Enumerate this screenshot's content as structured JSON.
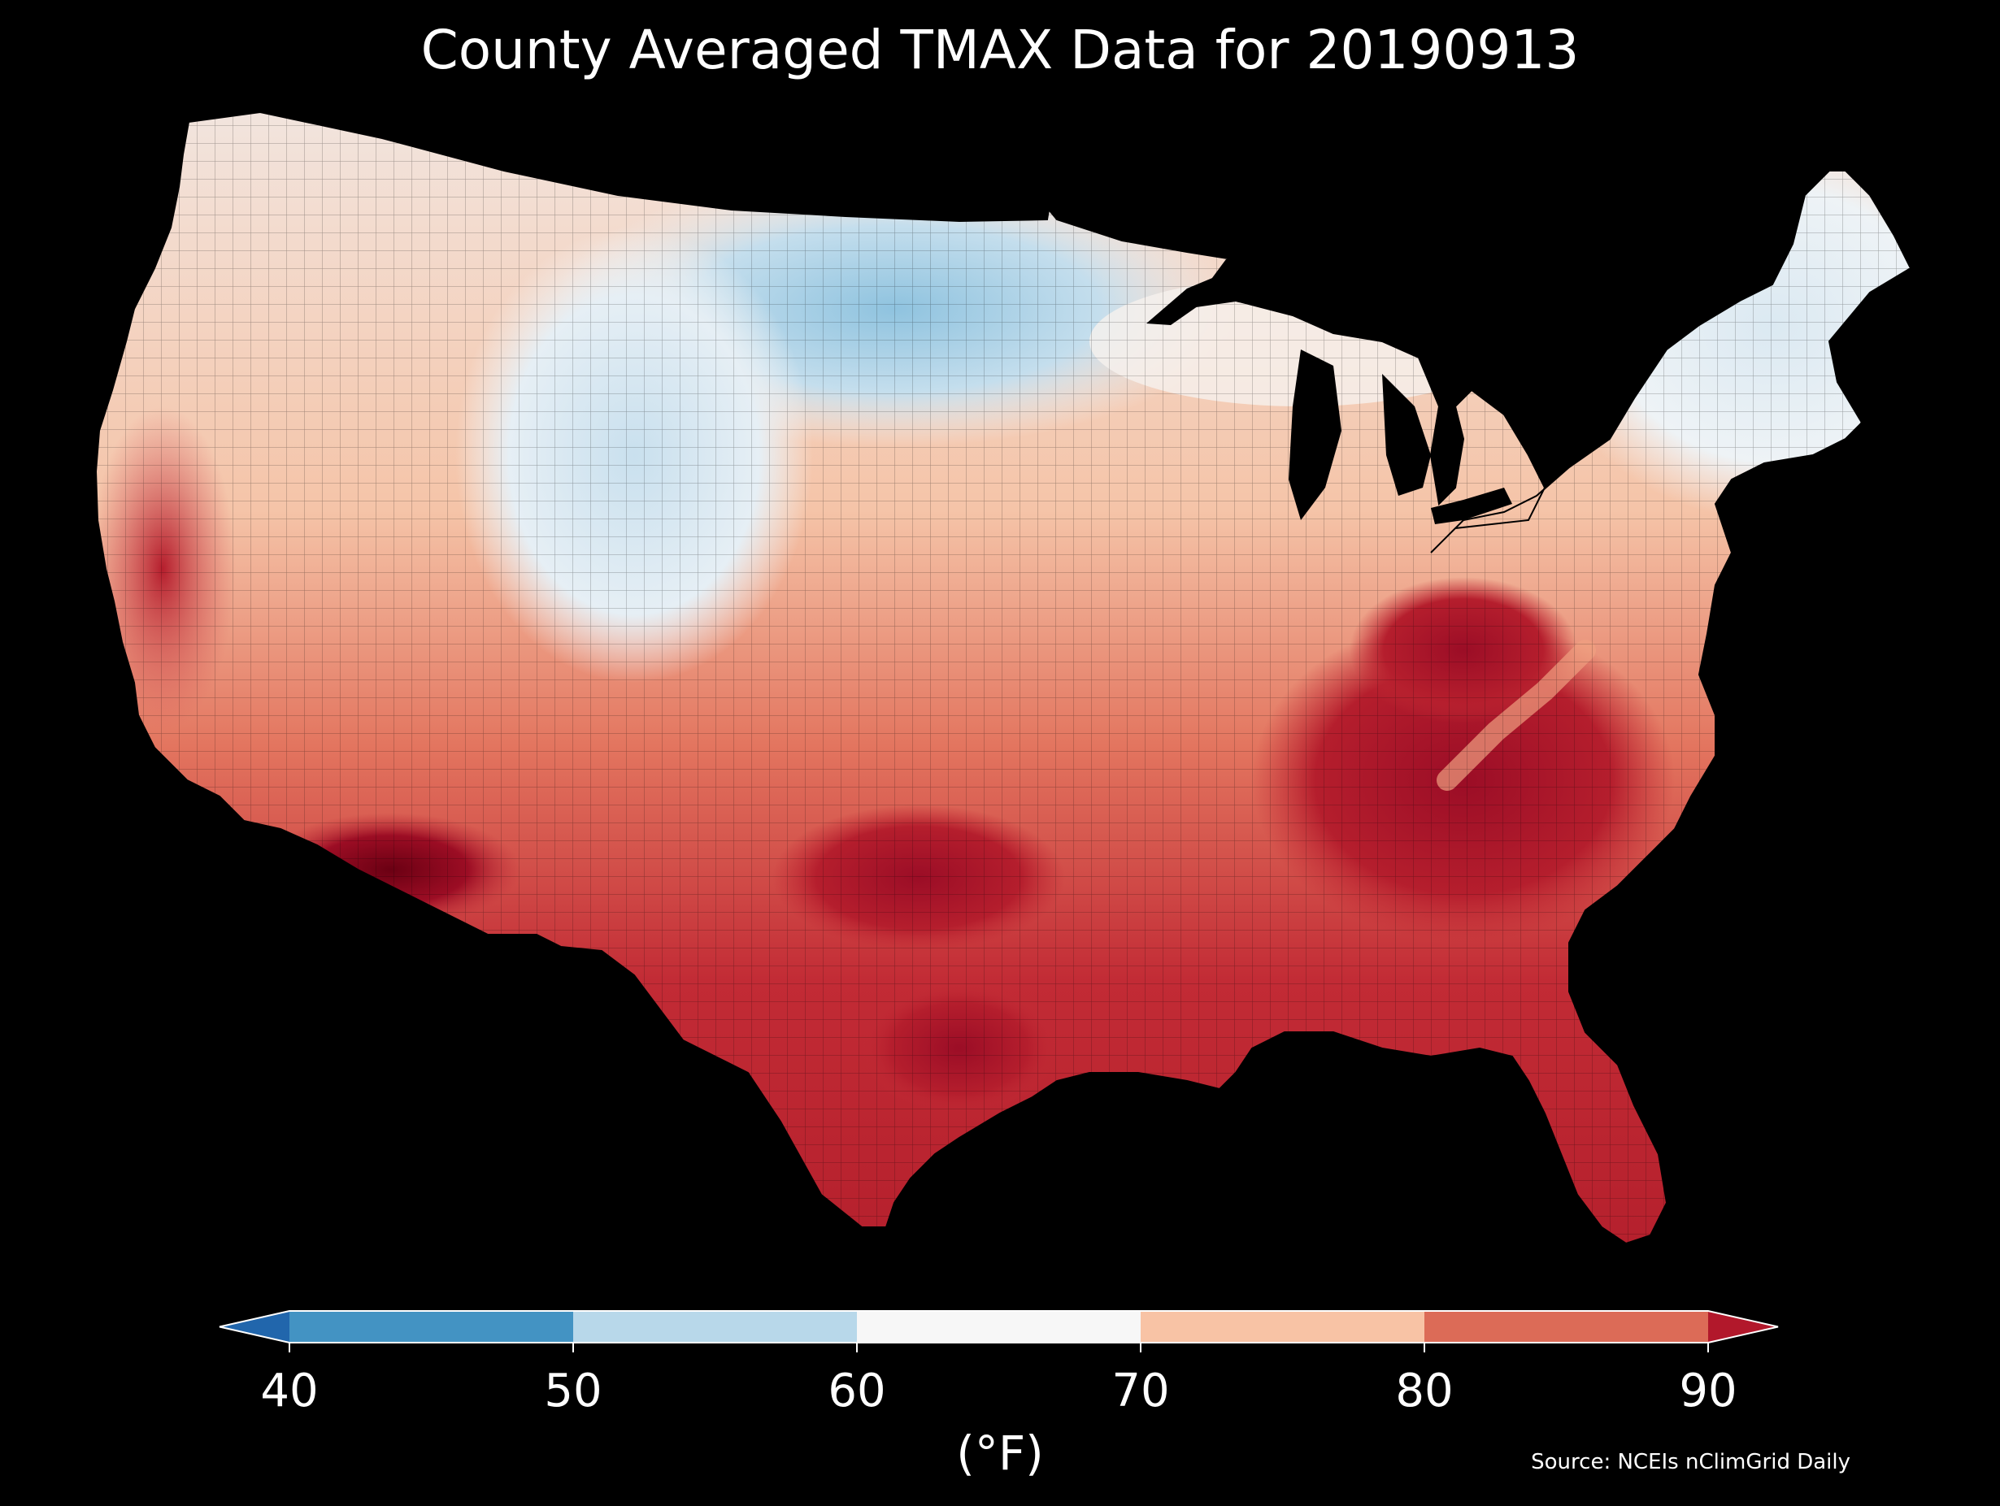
{
  "map": {
    "title": "County Averaged TMAX Data for 20190913",
    "source": "Source: NCEIs nClimGrid Daily",
    "background": "#000000"
  },
  "colorbar": {
    "units_label": "(°F)",
    "ticks": [
      "40",
      "50",
      "60",
      "70",
      "80",
      "90"
    ],
    "min": 40,
    "max": 90,
    "extend": "both",
    "bins": [
      {
        "from": 40,
        "to": 50,
        "color": "#4393c3"
      },
      {
        "from": 50,
        "to": 60,
        "color": "#b8d8ea"
      },
      {
        "from": 60,
        "to": 70,
        "color": "#f7f7f7"
      },
      {
        "from": 70,
        "to": 80,
        "color": "#f8c3a5"
      },
      {
        "from": 80,
        "to": 90,
        "color": "#dc6b57"
      }
    ],
    "under_color": "#2166ac",
    "over_color": "#b2182b"
  },
  "regions": [
    {
      "name": "cool-northern-plains",
      "band": "50-60",
      "color": "#9ccae2"
    },
    {
      "name": "pacific-northwest",
      "band": "70-80",
      "color": "#f4c0a2"
    },
    {
      "name": "central-valley-california",
      "band": "80-90",
      "color": "#c9333a"
    },
    {
      "name": "desert-southwest",
      "band": "90+",
      "color": "#7a0016"
    },
    {
      "name": "southeast",
      "band": "80-90+",
      "color": "#b8202e"
    },
    {
      "name": "northeast",
      "band": "60-70",
      "color": "#e9f1f6"
    },
    {
      "name": "great-lakes",
      "band": "water",
      "color": "#000000"
    }
  ]
}
